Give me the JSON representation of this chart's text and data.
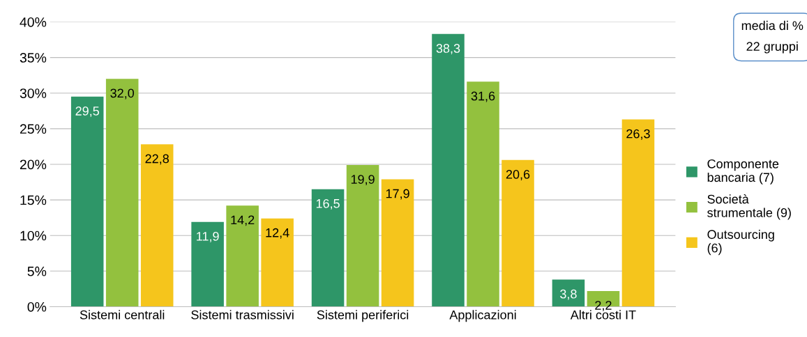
{
  "chart_data": {
    "type": "bar",
    "categories": [
      "Sistemi centrali",
      "Sistemi trasmissivi",
      "Sistemi periferici",
      "Applicazioni",
      "Altri costi IT"
    ],
    "series": [
      {
        "name": "Componente bancaria (7)",
        "color": "#2e9668",
        "values": [
          29.5,
          11.9,
          16.5,
          38.3,
          3.8
        ],
        "value_labels": [
          "29,5",
          "11,9",
          "16,5",
          "38,3",
          "3,8"
        ]
      },
      {
        "name": "Società strumentale (9)",
        "color": "#93c13e",
        "values": [
          32.0,
          14.2,
          19.9,
          31.6,
          2.2
        ],
        "value_labels": [
          "32,0",
          "14,2",
          "19,9",
          "31,6",
          "2,2"
        ]
      },
      {
        "name": "Outsourcing (6)",
        "color": "#f5c51c",
        "values": [
          22.8,
          12.4,
          17.9,
          20.6,
          26.3
        ],
        "value_labels": [
          "22,8",
          "12,4",
          "17,9",
          "20,6",
          "26,3"
        ]
      }
    ],
    "ylim": [
      0,
      40
    ],
    "yticks": [
      {
        "value": 0,
        "label": "0%"
      },
      {
        "value": 5,
        "label": "5%"
      },
      {
        "value": 10,
        "label": "10%"
      },
      {
        "value": 15,
        "label": "15%"
      },
      {
        "value": 20,
        "label": "20%"
      },
      {
        "value": 25,
        "label": "25%"
      },
      {
        "value": 30,
        "label": "30%"
      },
      {
        "value": 35,
        "label": "35%"
      },
      {
        "value": 40,
        "label": "40%"
      }
    ],
    "grid": "y",
    "legend": "right",
    "annotations": [
      "media di %\n22 gruppi"
    ]
  }
}
